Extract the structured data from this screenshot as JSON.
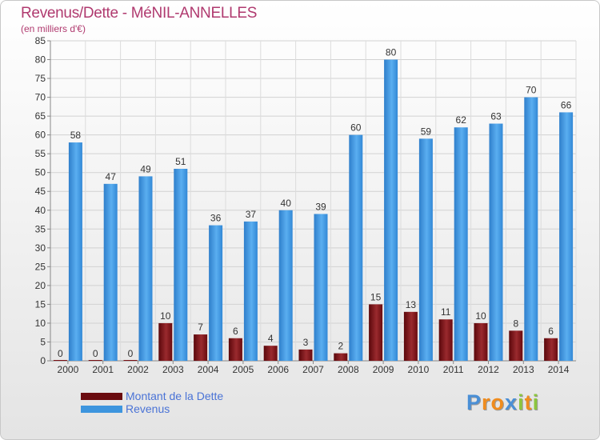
{
  "header": {
    "title": "Revenus/Dette - MéNIL-ANNELLES",
    "subtitle": "(en milliers d'€)"
  },
  "chart_data": {
    "type": "bar",
    "categories": [
      "2000",
      "2001",
      "2002",
      "2003",
      "2004",
      "2005",
      "2006",
      "2007",
      "2008",
      "2009",
      "2010",
      "2011",
      "2012",
      "2013",
      "2014"
    ],
    "series": [
      {
        "name": "Montant de la Dette",
        "values": [
          0,
          0,
          0,
          10,
          7,
          6,
          4,
          3,
          2,
          15,
          13,
          11,
          10,
          8,
          6
        ],
        "color": "#7a0f14"
      },
      {
        "name": "Revenus",
        "values": [
          58,
          47,
          49,
          51,
          36,
          37,
          40,
          39,
          60,
          80,
          59,
          62,
          63,
          70,
          66
        ],
        "color": "#3d95de"
      }
    ],
    "ylim": [
      0,
      85
    ],
    "yticks": [
      0,
      5,
      10,
      15,
      20,
      25,
      30,
      35,
      40,
      45,
      50,
      55,
      60,
      65,
      70,
      75,
      80,
      85
    ],
    "grid": true,
    "legend": "bottom-left"
  },
  "legend": {
    "items": [
      {
        "label": "Montant de la Dette",
        "color": "#6a0b0f"
      },
      {
        "label": "Revenus",
        "color": "#3d95de"
      }
    ]
  },
  "brand": {
    "letters": [
      {
        "ch": "P",
        "color": "#4a8fd6"
      },
      {
        "ch": "r",
        "color": "#f08c1e"
      },
      {
        "ch": "o",
        "color": "#f08c1e"
      },
      {
        "ch": "x",
        "color": "#4a8fd6"
      },
      {
        "ch": "i",
        "color": "#8cc63e"
      },
      {
        "ch": "t",
        "color": "#f08c1e"
      },
      {
        "ch": "i",
        "color": "#8cc63e"
      }
    ]
  }
}
